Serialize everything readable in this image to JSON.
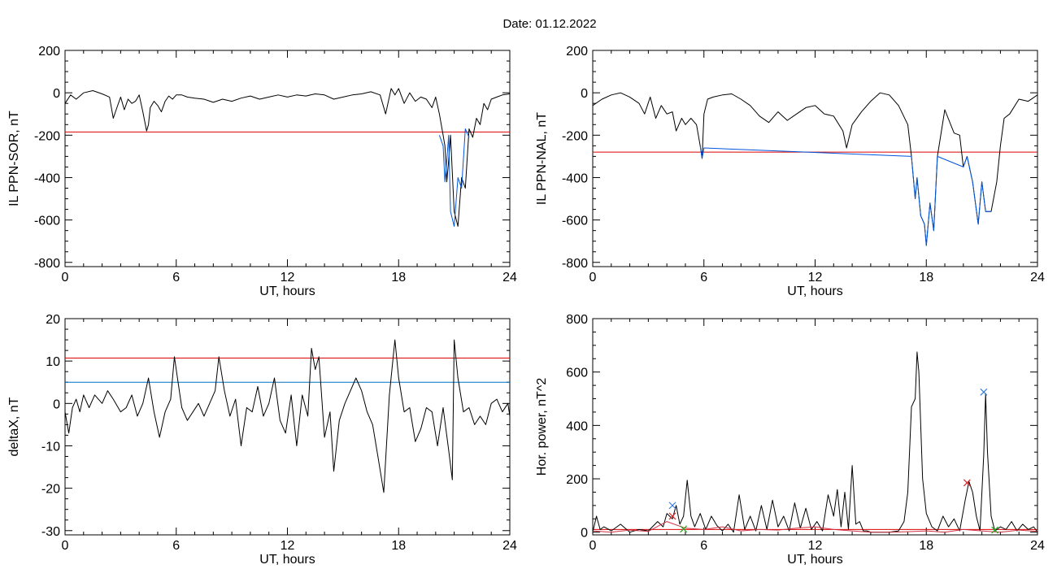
{
  "title": "Date:  01.12.2022",
  "chart_data": [
    {
      "type": "line",
      "id": "sor",
      "xlabel": "UT, hours",
      "ylabel": "IL PPN-SOR, nT",
      "xlim": [
        0,
        24
      ],
      "ylim": [
        -820,
        200
      ],
      "xticks": [
        0,
        6,
        12,
        18,
        24
      ],
      "yticks": [
        -800,
        -600,
        -400,
        -200,
        0,
        200
      ],
      "series": [
        {
          "color": "#000000",
          "x": [
            0,
            0.3,
            0.6,
            1,
            1.5,
            2,
            2.4,
            2.6,
            2.8,
            3,
            3.2,
            3.4,
            3.6,
            3.8,
            4,
            4.2,
            4.4,
            4.5,
            4.6,
            4.8,
            5,
            5.2,
            5.4,
            5.6,
            5.8,
            6,
            6.3,
            6.6,
            7,
            7.5,
            8,
            8.5,
            9,
            9.5,
            10,
            10.5,
            11,
            11.5,
            12,
            12.5,
            13,
            13.5,
            14,
            14.5,
            15,
            15.5,
            16,
            16.5,
            17,
            17.3,
            17.6,
            17.8,
            18,
            18.3,
            18.6,
            18.9,
            19.2,
            19.5,
            19.8,
            20,
            20.2,
            20.4,
            20.5,
            20.6,
            20.7,
            20.8,
            21,
            21.2,
            21.4,
            21.6,
            21.8,
            22,
            22.2,
            22.4,
            22.6,
            22.8,
            23,
            23.3,
            23.6,
            24
          ],
          "y": [
            -50,
            -10,
            -30,
            0,
            10,
            -5,
            -20,
            -120,
            -70,
            -20,
            -80,
            -30,
            -50,
            -40,
            -10,
            -90,
            -180,
            -150,
            -70,
            -40,
            -60,
            -90,
            -40,
            -15,
            -30,
            -10,
            -10,
            -20,
            -25,
            -30,
            -45,
            -30,
            -40,
            -25,
            -15,
            -30,
            -20,
            -10,
            -20,
            -10,
            -15,
            -5,
            -10,
            -30,
            -20,
            -10,
            -5,
            5,
            -10,
            -100,
            20,
            -10,
            20,
            -50,
            0,
            -40,
            -20,
            -30,
            -70,
            -20,
            -100,
            -200,
            -250,
            -420,
            -320,
            -200,
            -560,
            -630,
            -400,
            -450,
            -170,
            -210,
            -120,
            -150,
            -50,
            -80,
            -30,
            -20,
            -10,
            -5
          ]
        },
        {
          "color": "#0055dd",
          "x": [
            20.2,
            20.4,
            20.5,
            20.6,
            20.7,
            20.8,
            21,
            21.2,
            21.4,
            21.6,
            21.8
          ],
          "y": [
            -200,
            -250,
            -420,
            -320,
            -200,
            -560,
            -630,
            -400,
            -450,
            -170,
            -210
          ]
        }
      ],
      "hlines": [
        {
          "y": -185,
          "color": "#dd0000"
        }
      ]
    },
    {
      "type": "line",
      "id": "nal",
      "xlabel": "UT, hours",
      "ylabel": "IL PPN-NAL, nT",
      "xlim": [
        0,
        24
      ],
      "ylim": [
        -820,
        200
      ],
      "xticks": [
        0,
        6,
        12,
        18,
        24
      ],
      "yticks": [
        -800,
        -600,
        -400,
        -200,
        0,
        200
      ],
      "series": [
        {
          "color": "#000000",
          "x": [
            0,
            0.5,
            1,
            1.5,
            2,
            2.5,
            2.8,
            3.1,
            3.4,
            3.7,
            4,
            4.3,
            4.5,
            4.8,
            5,
            5.3,
            5.6,
            5.8,
            5.9,
            6,
            6.2,
            6.5,
            7,
            7.5,
            8,
            8.5,
            9,
            9.5,
            10,
            10.5,
            11,
            11.5,
            12,
            12.5,
            13,
            13.5,
            13.7,
            14,
            14.5,
            15,
            15.5,
            16,
            16.5,
            17,
            17.2,
            17.4,
            17.5,
            17.7,
            17.9,
            18,
            18.2,
            18.4,
            18.6,
            19,
            19.5,
            19.8,
            20,
            20.2,
            20.5,
            20.8,
            21,
            21.2,
            21.5,
            21.8,
            22,
            22.2,
            22.5,
            23,
            23.5,
            24
          ],
          "y": [
            -60,
            -30,
            -10,
            0,
            -20,
            -50,
            -100,
            -20,
            -120,
            -60,
            -100,
            -90,
            -180,
            -120,
            -150,
            -120,
            -150,
            -250,
            -310,
            -100,
            -30,
            -20,
            -10,
            -5,
            -30,
            -60,
            -110,
            -140,
            -90,
            -130,
            -100,
            -70,
            -60,
            -100,
            -110,
            -180,
            -260,
            -150,
            -90,
            -40,
            0,
            -10,
            -60,
            -150,
            -300,
            -500,
            -400,
            -580,
            -620,
            -720,
            -520,
            -650,
            -300,
            -80,
            -190,
            -200,
            -350,
            -300,
            -420,
            -620,
            -420,
            -560,
            -560,
            -420,
            -250,
            -120,
            -100,
            -30,
            -40,
            -10
          ]
        },
        {
          "color": "#0055dd",
          "x": [
            5.8,
            5.9,
            6,
            17.2,
            17.4,
            17.5,
            17.7,
            17.9,
            18,
            18.2,
            18.4,
            18.6,
            20,
            20.2,
            20.5,
            20.8,
            21,
            21.2,
            21.5
          ],
          "y": [
            -250,
            -310,
            -260,
            -300,
            -500,
            -400,
            -580,
            -620,
            -720,
            -520,
            -650,
            -300,
            -350,
            -300,
            -420,
            -620,
            -420,
            -560,
            -560
          ]
        }
      ],
      "hlines": [
        {
          "y": -280,
          "color": "#dd0000"
        }
      ]
    },
    {
      "type": "line",
      "id": "deltax",
      "xlabel": "UT, hours",
      "ylabel": "deltaX, nT",
      "xlim": [
        0,
        24
      ],
      "ylim": [
        -31,
        20
      ],
      "xticks": [
        0,
        6,
        12,
        18,
        24
      ],
      "yticks": [
        -30,
        -20,
        -10,
        0,
        10,
        20
      ],
      "series": [
        {
          "color": "#000000",
          "x": [
            0,
            0.2,
            0.4,
            0.6,
            0.8,
            1,
            1.3,
            1.6,
            2,
            2.3,
            2.6,
            3,
            3.3,
            3.6,
            3.9,
            4.2,
            4.5,
            4.8,
            5.1,
            5.4,
            5.7,
            5.9,
            6.1,
            6.3,
            6.6,
            6.9,
            7.2,
            7.5,
            7.8,
            8.1,
            8.3,
            8.6,
            8.9,
            9.2,
            9.5,
            9.8,
            10.1,
            10.4,
            10.7,
            11,
            11.3,
            11.6,
            11.9,
            12.2,
            12.5,
            12.8,
            13.1,
            13.3,
            13.5,
            13.7,
            14,
            14.3,
            14.5,
            14.8,
            15.1,
            15.4,
            15.7,
            16,
            16.3,
            16.6,
            16.9,
            17.2,
            17.5,
            17.8,
            18,
            18.3,
            18.6,
            18.9,
            19.2,
            19.5,
            19.8,
            20.1,
            20.4,
            20.7,
            20.9,
            21,
            21.2,
            21.5,
            21.8,
            22.1,
            22.4,
            22.7,
            23,
            23.3,
            23.6,
            23.9,
            24
          ],
          "y": [
            -2,
            -7,
            -1,
            1,
            -2,
            2,
            -1,
            2,
            0,
            3,
            1,
            -2,
            -1,
            2,
            -3,
            0,
            6,
            -2,
            -8,
            -2,
            1,
            11,
            5,
            -1,
            -4,
            -2,
            0,
            -3,
            0,
            3,
            11,
            3,
            -3,
            1,
            -10,
            -1,
            -2,
            4,
            -3,
            0,
            6,
            -4,
            -7,
            2,
            -10,
            2,
            -3,
            13,
            8,
            11,
            -8,
            -2,
            -16,
            -4,
            0,
            3,
            6,
            3,
            -2,
            -5,
            -13,
            -21,
            2,
            15,
            6,
            -2,
            -1,
            -9,
            -6,
            -1,
            -2,
            -10,
            -1,
            -11,
            -18,
            15,
            6,
            -2,
            -1,
            -5,
            -3,
            -5,
            0,
            1,
            -2,
            0,
            -3
          ]
        }
      ],
      "hlines": [
        {
          "y": 10.7,
          "color": "#dd0000"
        },
        {
          "y": 5,
          "color": "#0070c0"
        }
      ]
    },
    {
      "type": "line",
      "id": "power",
      "xlabel": "UT, hours",
      "ylabel": "Hor. power, nT^2",
      "xlim": [
        0,
        24
      ],
      "ylim": [
        -10,
        800
      ],
      "xticks": [
        0,
        6,
        12,
        18,
        24
      ],
      "yticks": [
        0,
        200,
        400,
        600,
        800
      ],
      "series": [
        {
          "color": "#000000",
          "x": [
            0,
            0.2,
            0.4,
            0.6,
            1,
            1.5,
            2,
            2.5,
            3,
            3.5,
            3.8,
            4,
            4.3,
            4.5,
            4.7,
            4.9,
            5.1,
            5.3,
            5.5,
            5.8,
            6.1,
            6.4,
            6.7,
            7,
            7.3,
            7.6,
            7.9,
            8.2,
            8.5,
            8.8,
            9.1,
            9.4,
            9.7,
            10,
            10.3,
            10.6,
            10.9,
            11.2,
            11.5,
            11.8,
            12.1,
            12.4,
            12.7,
            13,
            13.2,
            13.4,
            13.6,
            13.8,
            14,
            14.2,
            14.4,
            14.6,
            14.8,
            15,
            15.5,
            16,
            16.5,
            16.8,
            17,
            17.2,
            17.4,
            17.5,
            17.6,
            17.8,
            18,
            18.3,
            18.6,
            18.9,
            19.2,
            19.5,
            19.8,
            20.1,
            20.3,
            20.5,
            20.7,
            20.9,
            21.1,
            21.2,
            21.3,
            21.5,
            21.7,
            22,
            22.3,
            22.6,
            22.9,
            23.2,
            23.5,
            23.8,
            24
          ],
          "y": [
            0,
            60,
            10,
            20,
            5,
            30,
            0,
            10,
            5,
            40,
            20,
            70,
            50,
            100,
            30,
            60,
            195,
            60,
            20,
            70,
            10,
            60,
            25,
            5,
            30,
            0,
            140,
            10,
            60,
            5,
            100,
            10,
            120,
            20,
            60,
            5,
            110,
            15,
            90,
            10,
            40,
            5,
            140,
            60,
            160,
            20,
            150,
            10,
            250,
            30,
            40,
            5,
            5,
            0,
            0,
            0,
            5,
            40,
            150,
            470,
            500,
            675,
            600,
            200,
            70,
            20,
            5,
            60,
            20,
            50,
            5,
            120,
            190,
            150,
            60,
            5,
            290,
            520,
            300,
            60,
            5,
            20,
            10,
            40,
            5,
            30,
            10,
            20,
            0
          ]
        },
        {
          "color": "#cc3344",
          "x": [
            0,
            1,
            2,
            3,
            4,
            5,
            6,
            7,
            8,
            9,
            10,
            11,
            12,
            13,
            14,
            15,
            16,
            17,
            18,
            19,
            20,
            21,
            22,
            23,
            24
          ],
          "y": [
            5,
            0,
            8,
            3,
            40,
            15,
            10,
            20,
            5,
            10,
            8,
            15,
            20,
            10,
            5,
            0,
            0,
            2,
            5,
            0,
            10,
            5,
            0,
            8,
            3
          ]
        }
      ],
      "hlines": [
        {
          "y": 10,
          "color": "#dd0000"
        }
      ],
      "markers": [
        {
          "x": 4.3,
          "y": 100,
          "symbol": "x",
          "color": "#3a7dd8"
        },
        {
          "x": 4.3,
          "y": 60,
          "symbol": "x",
          "color": "#dd2222"
        },
        {
          "x": 20.2,
          "y": 185,
          "symbol": "x",
          "color": "#dd2222"
        },
        {
          "x": 21.1,
          "y": 525,
          "symbol": "x",
          "color": "#3a7dd8"
        },
        {
          "x": 4.9,
          "y": 12,
          "symbol": "x",
          "color": "#22aa22"
        },
        {
          "x": 21.7,
          "y": 8,
          "symbol": "x",
          "color": "#22aa22"
        }
      ]
    }
  ]
}
